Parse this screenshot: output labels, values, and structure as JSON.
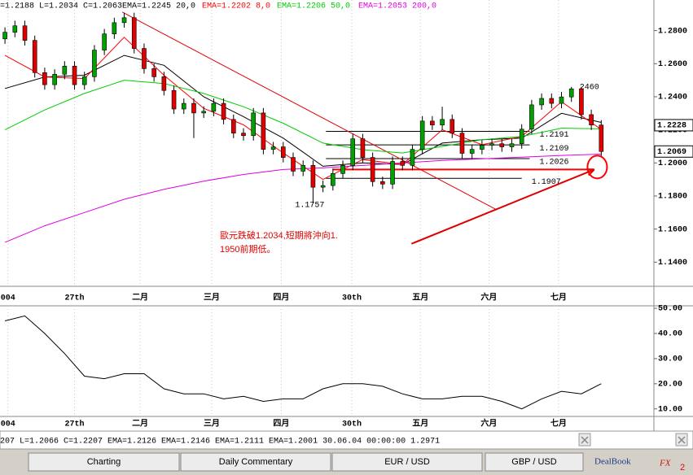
{
  "header": {
    "ohlc": "=1.2188 L=1.2034 C=1.2063"
  },
  "chart_data": [
    {
      "type": "candlestick",
      "x": [
        0,
        1,
        2,
        3,
        4,
        5,
        6,
        7,
        8,
        9,
        10,
        11,
        12,
        13,
        14,
        15,
        16,
        17,
        18,
        19,
        20,
        21,
        22,
        23,
        24,
        25,
        26,
        27,
        28,
        29,
        30,
        31,
        32,
        33,
        34,
        35,
        36,
        37,
        38,
        39,
        40,
        41,
        42,
        43,
        44,
        45,
        46,
        47,
        48,
        49,
        50,
        51,
        52,
        53,
        54,
        55,
        56,
        57,
        58,
        59,
        60
      ],
      "open": [
        1.275,
        1.279,
        1.2829,
        1.2741,
        1.2546,
        1.2473,
        1.2536,
        1.2585,
        1.2473,
        1.2521,
        1.2682,
        1.278,
        1.2848,
        1.2878,
        1.2692,
        1.257,
        1.2521,
        1.2438,
        1.2326,
        1.236,
        1.2302,
        1.2312,
        1.236,
        1.2263,
        1.218,
        1.2165,
        1.2302,
        1.2082,
        1.2097,
        1.2033,
        1.195,
        1.1985,
        1.1853,
        1.1863,
        1.1936,
        1.1985,
        1.2146,
        1.2033,
        1.1887,
        1.1872,
        1.2009,
        1.1985,
        1.2082,
        1.2253,
        1.2229,
        1.2263,
        1.218,
        1.2058,
        1.2082,
        1.2107,
        1.2116,
        1.2097,
        1.2116,
        1.2204,
        1.2351,
        1.239,
        1.236,
        1.2399,
        1.2448,
        1.2292,
        1.2229
      ],
      "high": [
        1.282,
        1.286,
        1.286,
        1.277,
        1.2576,
        1.2566,
        1.2615,
        1.2615,
        1.2551,
        1.2712,
        1.281,
        1.2878,
        1.2908,
        1.2908,
        1.2722,
        1.26,
        1.2551,
        1.2468,
        1.239,
        1.239,
        1.2342,
        1.239,
        1.239,
        1.2293,
        1.221,
        1.2332,
        1.2332,
        1.2127,
        1.2127,
        1.2063,
        1.2015,
        1.2015,
        1.1893,
        1.1966,
        1.2015,
        1.2176,
        1.2176,
        1.2063,
        1.1917,
        1.2039,
        1.2039,
        1.2112,
        1.2283,
        1.2283,
        1.234,
        1.2293,
        1.221,
        1.2112,
        1.2137,
        1.2146,
        1.2146,
        1.2146,
        1.2234,
        1.2381,
        1.242,
        1.242,
        1.2429,
        1.246,
        1.246,
        1.2322,
        1.2259
      ],
      "low": [
        1.272,
        1.276,
        1.271,
        1.2516,
        1.2443,
        1.2443,
        1.2506,
        1.2443,
        1.2443,
        1.2491,
        1.2652,
        1.275,
        1.2818,
        1.2662,
        1.254,
        1.2491,
        1.2408,
        1.2296,
        1.2296,
        1.215,
        1.2272,
        1.2282,
        1.2233,
        1.215,
        1.2135,
        1.2135,
        1.2052,
        1.2052,
        1.2003,
        1.192,
        1.192,
        1.1757,
        1.1823,
        1.1833,
        1.1906,
        1.1955,
        1.2003,
        1.1857,
        1.1842,
        1.1842,
        1.1955,
        1.1955,
        1.2052,
        1.2199,
        1.2199,
        1.215,
        1.2028,
        1.2028,
        1.2052,
        1.2077,
        1.2067,
        1.2067,
        1.2086,
        1.2174,
        1.2321,
        1.233,
        1.233,
        1.2369,
        1.2262,
        1.2199,
        1.2039
      ],
      "close": [
        1.279,
        1.2829,
        1.2741,
        1.2546,
        1.2473,
        1.2536,
        1.2585,
        1.2473,
        1.2521,
        1.2682,
        1.278,
        1.2848,
        1.2878,
        1.2692,
        1.257,
        1.2521,
        1.2438,
        1.2326,
        1.236,
        1.2302,
        1.2312,
        1.236,
        1.2263,
        1.218,
        1.2165,
        1.2302,
        1.2082,
        1.2097,
        1.2033,
        1.195,
        1.1985,
        1.1853,
        1.1863,
        1.1936,
        1.1985,
        1.2146,
        1.2033,
        1.1887,
        1.1872,
        1.2009,
        1.1985,
        1.2082,
        1.2253,
        1.2229,
        1.2263,
        1.218,
        1.2058,
        1.2082,
        1.2107,
        1.2116,
        1.2097,
        1.2116,
        1.2204,
        1.2351,
        1.239,
        1.236,
        1.2399,
        1.2448,
        1.2292,
        1.2229,
        1.2069
      ],
      "up_color": "#00a000",
      "down_color": "#e00000",
      "lines": [
        {
          "name": "EMA=1.2245 20,0",
          "color": "#000000",
          "x": [
            0,
            4,
            8,
            12,
            16,
            20,
            24,
            28,
            32,
            36,
            40,
            44,
            48,
            52,
            56,
            60
          ],
          "values": [
            1.245,
            1.252,
            1.253,
            1.265,
            1.259,
            1.24,
            1.228,
            1.215,
            1.198,
            1.2,
            1.199,
            1.212,
            1.214,
            1.215,
            1.23,
            1.2245
          ]
        },
        {
          "name": "EMA=1.2202 8,0",
          "color": "#ff0000",
          "x": [
            0,
            4,
            8,
            12,
            16,
            20,
            24,
            28,
            32,
            36,
            40,
            44,
            48,
            52,
            56,
            60
          ],
          "values": [
            1.265,
            1.252,
            1.251,
            1.276,
            1.253,
            1.233,
            1.223,
            1.206,
            1.19,
            1.202,
            1.199,
            1.22,
            1.211,
            1.216,
            1.237,
            1.2202
          ]
        },
        {
          "name": "EMA=1.2206 50,0",
          "color": "#00cc00",
          "x": [
            0,
            4,
            8,
            12,
            16,
            20,
            24,
            28,
            32,
            36,
            40,
            44,
            48,
            52,
            56,
            60
          ],
          "values": [
            1.22,
            1.232,
            1.242,
            1.25,
            1.248,
            1.242,
            1.234,
            1.224,
            1.212,
            1.208,
            1.206,
            1.21,
            1.214,
            1.216,
            1.221,
            1.2206
          ]
        },
        {
          "name": "EMA=1.2053 200,0",
          "color": "#e000e0",
          "x": [
            0,
            4,
            8,
            12,
            16,
            20,
            24,
            28,
            32,
            36,
            40,
            44,
            48,
            52,
            56,
            60
          ],
          "values": [
            1.152,
            1.162,
            1.17,
            1.178,
            1.184,
            1.189,
            1.193,
            1.196,
            1.197,
            1.1985,
            1.2,
            1.2015,
            1.2025,
            1.2035,
            1.2045,
            1.2053
          ]
        }
      ],
      "xlim": [
        -0.5,
        65.3
      ],
      "ylim": [
        1.1254,
        1.2985
      ],
      "yticks": [
        {
          "value": 1.14,
          "label": "1.1400"
        },
        {
          "value": 1.16,
          "label": "1.1600"
        },
        {
          "value": 1.18,
          "label": "1.1800"
        },
        {
          "value": 1.2,
          "label": "1.2000"
        },
        {
          "value": 1.22,
          "label": "1.2200"
        },
        {
          "value": 1.24,
          "label": "1.2400"
        },
        {
          "value": 1.26,
          "label": "1.2600"
        },
        {
          "value": 1.28,
          "label": "1.2800"
        }
      ],
      "xticks": [
        {
          "value": 0.3,
          "label": "004"
        },
        {
          "value": 7,
          "label": "27th"
        },
        {
          "value": 13.6,
          "label": "二月"
        },
        {
          "value": 20.8,
          "label": "三月"
        },
        {
          "value": 27.8,
          "label": "四月"
        },
        {
          "value": 34.9,
          "label": "30th"
        },
        {
          "value": 41.8,
          "label": "五月"
        },
        {
          "value": 48.7,
          "label": "六月"
        },
        {
          "value": 55.7,
          "label": "七月"
        }
      ],
      "price_markers": [
        {
          "value": 1.2228,
          "label": "1.2228"
        },
        {
          "value": 1.2069,
          "label": "1.2069"
        }
      ],
      "levels": [
        {
          "value": 1.2191,
          "x": [
            32.3,
            52.8
          ]
        },
        {
          "value": 1.2109,
          "x": [
            32.3,
            52.8
          ]
        },
        {
          "value": 1.2026,
          "x": [
            32.3,
            52.8
          ]
        },
        {
          "value": 1.1907,
          "x": [
            32.3,
            52.0
          ]
        }
      ],
      "support_line": {
        "value": 1.196,
        "x": [
          33,
          59.3
        ],
        "color": "#ff0000"
      },
      "trend_line": {
        "x": [
          11.8,
          49.5
        ],
        "y": [
          1.2912,
          1.1716
        ],
        "color": "#e00000"
      },
      "arrow": {
        "x": [
          40.9,
          59.3
        ],
        "y": [
          1.1511,
          1.196
        ],
        "color": "#e00000"
      },
      "circle": {
        "x": 59.6,
        "y": 1.1975,
        "color": "#ff0000"
      },
      "annotations": [
        {
          "value": 1.246,
          "label": "2460"
        },
        {
          "value": 1.1757
        }
      ],
      "note": [
        "歐元跌破1.2034,短期將沖向1.",
        "1950前期低。"
      ]
    },
    {
      "type": "line",
      "x": [
        0,
        2,
        4,
        6,
        8,
        10,
        12,
        14,
        16,
        18,
        20,
        22,
        24,
        26,
        28,
        30,
        32,
        34,
        36,
        38,
        40,
        42,
        44,
        46,
        48,
        50,
        52,
        54,
        56,
        58,
        60
      ],
      "values": [
        45,
        47,
        40,
        32,
        23,
        22,
        24,
        24,
        18,
        16,
        16,
        14,
        15,
        13,
        14,
        14,
        18,
        20,
        20,
        19,
        16,
        14,
        14,
        15,
        15,
        13,
        10,
        14,
        17,
        16,
        20
      ],
      "color": "#000000",
      "xlim": [
        -0.5,
        65.3
      ],
      "ylim": [
        7,
        51
      ],
      "yticks": [
        {
          "value": 10,
          "label": "10.00"
        },
        {
          "value": 20,
          "label": "20.00"
        },
        {
          "value": 30,
          "label": "30.00"
        },
        {
          "value": 40,
          "label": "40.00"
        },
        {
          "value": 50,
          "label": "50.00"
        }
      ],
      "xticks": [
        {
          "value": 0.3,
          "label": "004"
        },
        {
          "value": 7,
          "label": "27th"
        },
        {
          "value": 13.6,
          "label": "二月"
        },
        {
          "value": 20.8,
          "label": "三月"
        },
        {
          "value": 27.8,
          "label": "四月"
        },
        {
          "value": 34.9,
          "label": "30th"
        },
        {
          "value": 41.8,
          "label": "五月"
        },
        {
          "value": 48.7,
          "label": "六月"
        },
        {
          "value": 55.7,
          "label": "七月"
        }
      ]
    }
  ],
  "status_bar": "207 L=1.2066 C=1.2207 EMA=1.2126 EMA=1.2146 EMA=1.2111 EMA=1.2001 30.06.04 00:00:00 1.2971",
  "tabs": [
    "Charting",
    "Daily Commentary",
    "EUR / USD",
    "GBP / USD"
  ],
  "logo": {
    "text": "DealBook",
    "suffix": "FX",
    "sub": "2"
  }
}
